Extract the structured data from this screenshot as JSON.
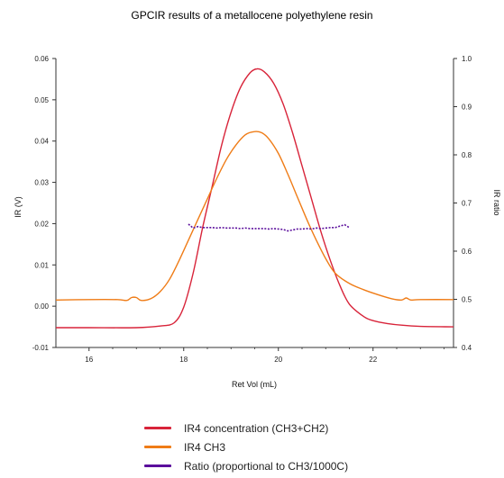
{
  "chart_data": {
    "type": "line",
    "title": "GPCIR results of a metallocene polyethylene resin",
    "xlabel": "Ret Vol (mL)",
    "ylabel": "IR (V)",
    "y2label": "IR ratio",
    "xlim": [
      15.3,
      23.7
    ],
    "ylim": [
      -0.01,
      0.06
    ],
    "y2lim": [
      0.4,
      1.0
    ],
    "x_ticks": [
      16,
      18,
      20,
      22
    ],
    "y_ticks": [
      "-0.01",
      "0.00",
      "0.01",
      "0.02",
      "0.03",
      "0.04",
      "0.05",
      "0.06"
    ],
    "y2_ticks": [
      "0.4",
      "0.5",
      "0.6",
      "0.7",
      "0.8",
      "0.9",
      "1.0"
    ],
    "grid": false,
    "legend_position": "bottom",
    "series": [
      {
        "name": "IR4 concentration (CH3+CH2)",
        "color": "#d8243a",
        "axis": "left",
        "x": [
          15.3,
          16,
          17,
          17.5,
          17.8,
          18.0,
          18.2,
          18.4,
          18.6,
          18.8,
          19.0,
          19.2,
          19.4,
          19.55,
          19.7,
          19.9,
          20.1,
          20.3,
          20.5,
          20.7,
          20.9,
          21.1,
          21.3,
          21.5,
          21.8,
          22.0,
          22.3,
          22.6,
          23.0,
          23.7
        ],
        "y": [
          -0.0052,
          -0.0052,
          -0.0052,
          -0.0048,
          -0.004,
          -0.0002,
          0.008,
          0.019,
          0.029,
          0.039,
          0.047,
          0.053,
          0.0565,
          0.0575,
          0.0568,
          0.054,
          0.049,
          0.042,
          0.034,
          0.026,
          0.018,
          0.011,
          0.005,
          0.0005,
          -0.0025,
          -0.0035,
          -0.0042,
          -0.0046,
          -0.0049,
          -0.005
        ]
      },
      {
        "name": "IR4 CH3",
        "color": "#ef7c17",
        "axis": "left",
        "x": [
          15.3,
          16.0,
          16.6,
          16.8,
          16.9,
          17.0,
          17.1,
          17.3,
          17.5,
          17.7,
          17.9,
          18.1,
          18.3,
          18.5,
          18.7,
          18.9,
          19.1,
          19.3,
          19.5,
          19.65,
          19.8,
          20.0,
          20.2,
          20.4,
          20.6,
          20.8,
          21.0,
          21.2,
          21.5,
          21.8,
          22.1,
          22.4,
          22.6,
          22.7,
          22.8,
          23.0,
          23.7
        ],
        "y": [
          0.0015,
          0.0016,
          0.0016,
          0.0014,
          0.0021,
          0.0021,
          0.0014,
          0.0018,
          0.0035,
          0.0065,
          0.011,
          0.016,
          0.021,
          0.026,
          0.031,
          0.0355,
          0.039,
          0.0415,
          0.0423,
          0.042,
          0.0405,
          0.037,
          0.032,
          0.0265,
          0.021,
          0.016,
          0.0115,
          0.008,
          0.0055,
          0.004,
          0.0028,
          0.0018,
          0.0015,
          0.002,
          0.0015,
          0.0016,
          0.0016
        ]
      },
      {
        "name": "Ratio (proportional to CH3/1000C)",
        "color": "#5b0f9c",
        "axis": "right",
        "x": [
          18.1,
          18.2,
          18.3,
          18.4,
          18.5,
          18.6,
          18.7,
          18.8,
          18.9,
          19.0,
          19.1,
          19.2,
          19.3,
          19.4,
          19.5,
          19.6,
          19.7,
          19.8,
          19.9,
          20.0,
          20.1,
          20.2,
          20.3,
          20.4,
          20.5,
          20.6,
          20.7,
          20.8,
          20.9,
          21.0,
          21.1,
          21.2,
          21.3,
          21.4,
          21.5
        ],
        "y": [
          0.656,
          0.648,
          0.651,
          0.649,
          0.649,
          0.649,
          0.648,
          0.649,
          0.648,
          0.648,
          0.648,
          0.647,
          0.648,
          0.647,
          0.647,
          0.647,
          0.647,
          0.646,
          0.647,
          0.646,
          0.645,
          0.642,
          0.644,
          0.646,
          0.646,
          0.647,
          0.646,
          0.648,
          0.647,
          0.648,
          0.649,
          0.649,
          0.652,
          0.655,
          0.649
        ]
      }
    ]
  }
}
